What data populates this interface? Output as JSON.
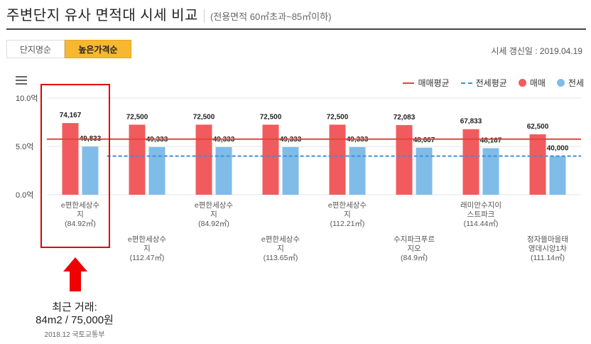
{
  "header": {
    "title": "주변단지 유사 면적대 시세 비교",
    "subtitle": "(전용면적 60㎡초과~85㎡이하)"
  },
  "tabs": [
    {
      "label": "단지명순",
      "active": false
    },
    {
      "label": "높은가격순",
      "active": true
    }
  ],
  "update_label": "시세 갱신일 : 2019.04.19",
  "legend": {
    "avg_sale": "매매평균",
    "avg_jeonse": "전세평균",
    "sale": "매매",
    "jeonse": "전세"
  },
  "colors": {
    "sale": "#f15b5d",
    "jeonse": "#80bce8",
    "avg_sale": "#e2453f",
    "avg_jeonse": "#3f8fd6",
    "accent": "#f6b831",
    "highlight": "#e00000"
  },
  "chart_data": {
    "type": "bar",
    "ylim": [
      0,
      10
    ],
    "ytick_labels": [
      "10.0억",
      "5.0억",
      "0.0억"
    ],
    "ytick_values": [
      10,
      5,
      0
    ],
    "categories": [
      {
        "name": "e편한세상수지",
        "lines": [
          "e편한세상수",
          "지"
        ],
        "area": "(84.92㎡)"
      },
      {
        "name": "e편한세상수지",
        "lines": [
          "e편한세상수",
          "지"
        ],
        "area": "(112.47㎡)"
      },
      {
        "name": "e편한세상수지",
        "lines": [
          "e편한세상수",
          "지"
        ],
        "area": "(84.92㎡)"
      },
      {
        "name": "e편한세상수지",
        "lines": [
          "e편한세상수",
          "지"
        ],
        "area": "(113.65㎡)"
      },
      {
        "name": "e편한세상수지",
        "lines": [
          "e편한세상수",
          "지"
        ],
        "area": "(112.21㎡)"
      },
      {
        "name": "수지파크푸르지오",
        "lines": [
          "수지파크푸르",
          "지오"
        ],
        "area": "(84.9㎡)"
      },
      {
        "name": "래미안수지이스트파크",
        "lines": [
          "래미안수지이",
          "스트파크"
        ],
        "area": "(114.44㎡)"
      },
      {
        "name": "정자뜰마을태영데시앙1차",
        "lines": [
          "정자뜰마을태",
          "영데시앙1차"
        ],
        "area": "(111.14㎡)"
      }
    ],
    "series": [
      {
        "name": "매매",
        "values": [
          74167,
          72500,
          72500,
          72500,
          72500,
          72083,
          67833,
          62500
        ],
        "labels": [
          "74,167",
          "72,500",
          "72,500",
          "72,500",
          "72,500",
          "72,083",
          "67,833",
          "62,500"
        ]
      },
      {
        "name": "전세",
        "values": [
          49833,
          49333,
          49333,
          49333,
          49333,
          48667,
          48167,
          40000
        ],
        "labels": [
          "49,833",
          "49,333",
          "49,333",
          "49,333",
          "49,333",
          "48,667",
          "48,167",
          "40,000"
        ]
      }
    ],
    "averages": {
      "매매평균": 57500,
      "전세평균": 40000
    }
  },
  "annotation": {
    "line1": "최근 거래:",
    "line2": "84m2 / 75,000원",
    "line3": "2018.12 국토교통부"
  }
}
